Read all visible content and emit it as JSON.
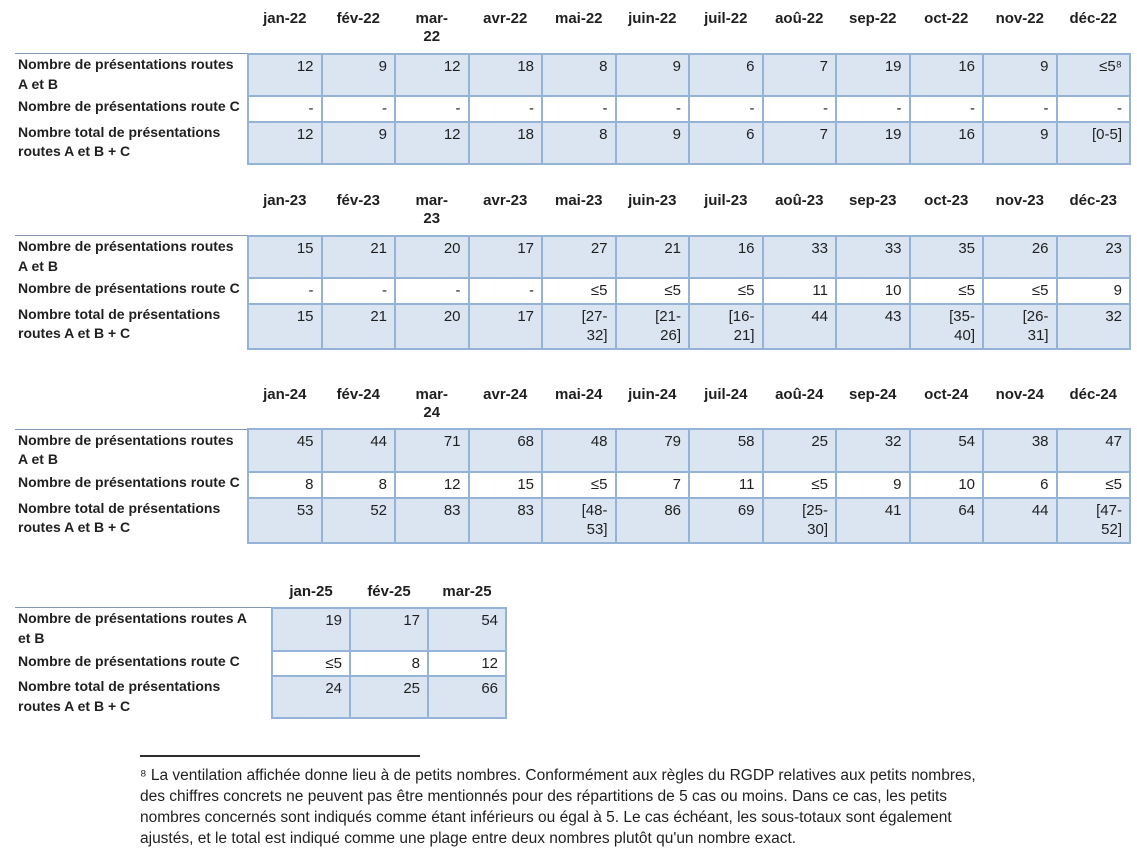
{
  "styles": {
    "background": "#ffffff",
    "text": "#1f1f1f",
    "cell_fill": "#dbe5f1",
    "cell_border": "#95b3d7",
    "label_rule": "#8397b5",
    "footnote_rule": "#2e2e2e"
  },
  "tables": [
    {
      "id": "2022",
      "months": [
        "jan-22",
        "fév-22",
        "mar-\n22",
        "avr-22",
        "mai-22",
        "juin-22",
        "juil-22",
        "aoû-22",
        "sep-22",
        "oct-22",
        "nov-22",
        "déc-22"
      ],
      "rows": [
        {
          "label": "Nombre de présentations routes\nA et B",
          "shaded": true,
          "values": [
            "12",
            "9",
            "12",
            "18",
            "8",
            "9",
            "6",
            "7",
            "19",
            "16",
            "9",
            "≤5⁸"
          ]
        },
        {
          "label": "Nombre de présentations route C",
          "shaded": false,
          "values": [
            "-",
            "-",
            "-",
            "-",
            "-",
            "-",
            "-",
            "-",
            "-",
            "-",
            "-",
            "-"
          ]
        },
        {
          "label": "Nombre total de présentations\nroutes A et B + C",
          "shaded": true,
          "values": [
            "12",
            "9",
            "12",
            "18",
            "8",
            "9",
            "6",
            "7",
            "19",
            "16",
            "9",
            "[0-5]"
          ]
        }
      ]
    },
    {
      "id": "2023",
      "months": [
        "jan-23",
        "fév-23",
        "mar-\n23",
        "avr-23",
        "mai-23",
        "juin-23",
        "juil-23",
        "aoû-23",
        "sep-23",
        "oct-23",
        "nov-23",
        "déc-23"
      ],
      "rows": [
        {
          "label": "Nombre de présentations routes\nA et B",
          "shaded": true,
          "values": [
            "15",
            "21",
            "20",
            "17",
            "27",
            "21",
            "16",
            "33",
            "33",
            "35",
            "26",
            "23"
          ]
        },
        {
          "label": "Nombre de présentations route C",
          "shaded": false,
          "values": [
            "-",
            "-",
            "-",
            "-",
            "≤5",
            "≤5",
            "≤5",
            "11",
            "10",
            "≤5",
            "≤5",
            "9"
          ]
        },
        {
          "label": "Nombre total de présentations\nroutes A et B + C",
          "shaded": true,
          "values": [
            "15",
            "21",
            "20",
            "17",
            "[27-\n32]",
            "[21-\n26]",
            "[16-\n21]",
            "44",
            "43",
            "[35-\n40]",
            "[26-\n31]",
            "32"
          ]
        }
      ]
    },
    {
      "id": "2024",
      "months": [
        "jan-24",
        "fév-24",
        "mar-\n24",
        "avr-24",
        "mai-24",
        "juin-24",
        "juil-24",
        "aoû-24",
        "sep-24",
        "oct-24",
        "nov-24",
        "déc-24"
      ],
      "rows": [
        {
          "label": "Nombre de présentations routes\nA et B",
          "shaded": true,
          "values": [
            "45",
            "44",
            "71",
            "68",
            "48",
            "79",
            "58",
            "25",
            "32",
            "54",
            "38",
            "47"
          ]
        },
        {
          "label": "Nombre de présentations route C",
          "shaded": false,
          "values": [
            "8",
            "8",
            "12",
            "15",
            "≤5",
            "7",
            "11",
            "≤5",
            "9",
            "10",
            "6",
            "≤5"
          ]
        },
        {
          "label": "Nombre total de présentations\nroutes A et B + C",
          "shaded": true,
          "values": [
            "53",
            "52",
            "83",
            "83",
            "[48-\n53]",
            "86",
            "69",
            "[25-\n30]",
            "41",
            "64",
            "44",
            "[47-\n52]"
          ]
        }
      ]
    },
    {
      "id": "2025",
      "months": [
        "jan-25",
        "fév-25",
        "mar-25"
      ],
      "rows": [
        {
          "label": "Nombre de présentations routes A\net B",
          "shaded": true,
          "values": [
            "19",
            "17",
            "54"
          ]
        },
        {
          "label": "Nombre de présentations route C",
          "shaded": false,
          "values": [
            "≤5",
            "8",
            "12"
          ]
        },
        {
          "label": "Nombre total de présentations\nroutes A et B + C",
          "shaded": true,
          "values": [
            "24",
            "25",
            "66"
          ]
        }
      ]
    }
  ],
  "footnote": {
    "text": "⁸ La ventilation affichée donne lieu à de petits nombres. Conformément aux règles du RGDP relatives aux petits nombres,\ndes chiffres concrets ne peuvent pas être mentionnés pour des répartitions de 5 cas ou moins. Dans ce cas, les petits\nnombres concernés sont indiqués comme étant inférieurs ou égal à 5. Le cas échéant, les sous-totaux sont également\najustés, et le total est indiqué comme une plage entre deux nombres plutôt qu'un nombre exact."
  }
}
